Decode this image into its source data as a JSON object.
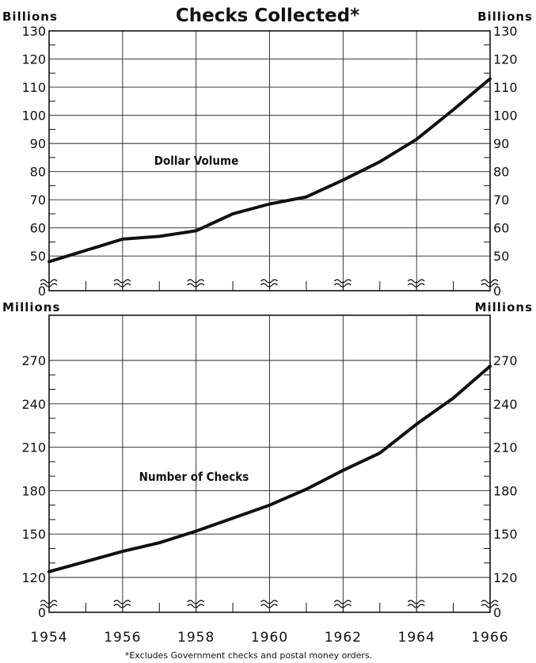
{
  "title": "Checks Collected*",
  "footnote": "*Excludes Government checks and postal money orders.",
  "chart_data": [
    {
      "type": "line",
      "unit_label": "Billions",
      "series": [
        {
          "name": "Dollar Volume",
          "x": [
            1954,
            1955,
            1956,
            1957,
            1958,
            1959,
            1960,
            1961,
            1962,
            1963,
            1964,
            1965,
            1966
          ],
          "values": [
            48,
            52,
            56,
            57,
            59,
            65,
            68.5,
            71,
            77,
            83.5,
            91.5,
            102,
            113
          ]
        }
      ],
      "ylim": [
        0,
        130
      ],
      "y_ticks": [
        0,
        50,
        60,
        70,
        80,
        90,
        100,
        110,
        120,
        130
      ],
      "y_scale_break": [
        0,
        45
      ],
      "grid": true
    },
    {
      "type": "line",
      "unit_label": "Millions",
      "series": [
        {
          "name": "Number of Checks",
          "x": [
            1954,
            1955,
            1956,
            1957,
            1958,
            1959,
            1960,
            1961,
            1962,
            1963,
            1964,
            1965,
            1966
          ],
          "values": [
            124,
            131,
            138,
            144,
            152,
            161,
            170,
            181,
            194,
            206,
            226,
            244,
            266
          ]
        }
      ],
      "ylim": [
        0,
        270
      ],
      "y_ticks": [
        0,
        120,
        150,
        180,
        210,
        240,
        270
      ],
      "y_scale_break": [
        0,
        110
      ],
      "grid": true
    }
  ],
  "x_ticks": [
    "1954",
    "1956",
    "1958",
    "1960",
    "1962",
    "1964",
    "1966"
  ]
}
